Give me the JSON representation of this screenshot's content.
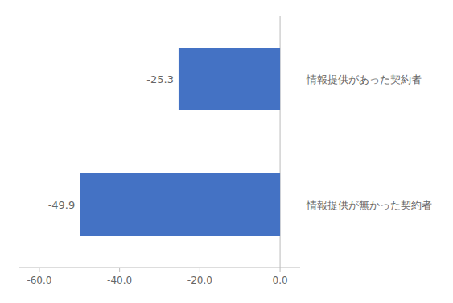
{
  "chart_data": {
    "type": "bar",
    "orientation": "horizontal",
    "categories": [
      "情報提供が無かった契約者",
      "情報提供があった契約者"
    ],
    "values": [
      -49.9,
      -25.3
    ],
    "color": "#4472C4",
    "data_labels": true,
    "xlim": [
      -65,
      5
    ],
    "xticks": [
      {
        "value": -60.0,
        "label": "-60.0"
      },
      {
        "value": -40.0,
        "label": "-40.0"
      },
      {
        "value": -20.0,
        "label": "-20.0"
      },
      {
        "value": 0.0,
        "label": "0.0"
      }
    ],
    "grid": false,
    "tick_labels": "x"
  }
}
